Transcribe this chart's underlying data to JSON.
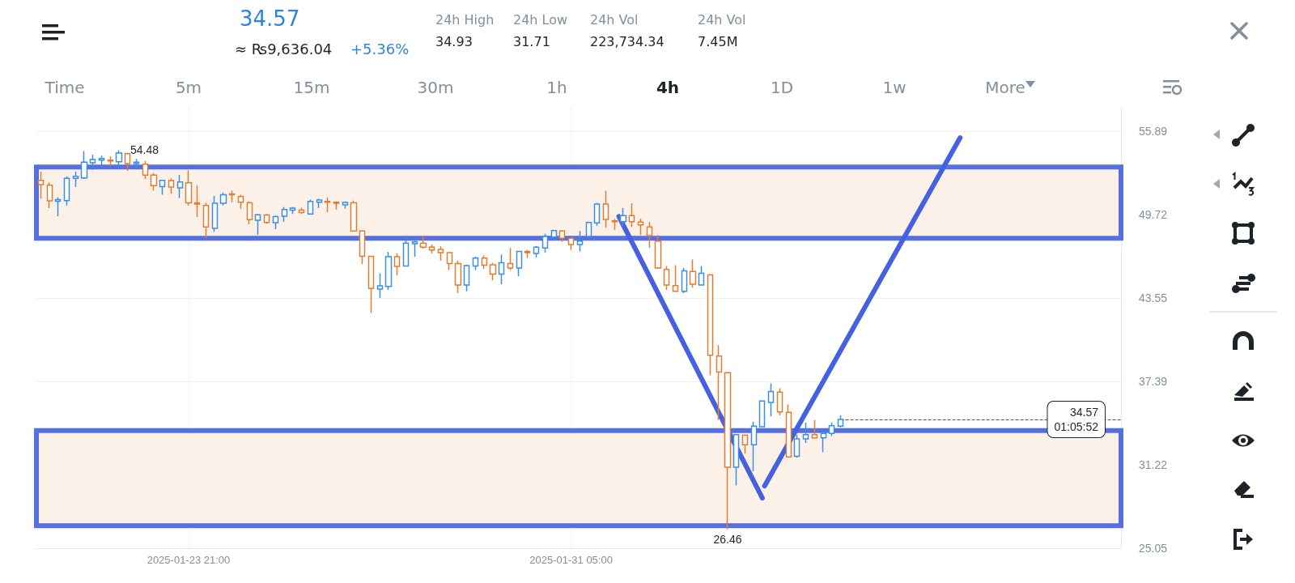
{
  "chart_data": {
    "type": "candlestick",
    "title": "34.57",
    "subtitle": "≈ ₨9,636.04",
    "annotations": [
      "+5.36%",
      "24h High",
      "34.93",
      "24h Low",
      "31.71",
      "24h Vol",
      "223,734.34",
      "24h Vol",
      "7.45M",
      "Time",
      "5m",
      "15m",
      "30m",
      "1h",
      "4h",
      "1D",
      "1w",
      "More",
      {
        "text": "54.48",
        "x": "2025-01-22T13:00",
        "y": 54.48
      },
      {
        "text": "26.46",
        "x": "2025-02-03T05:00",
        "y": 26.46
      }
    ],
    "x": [
      "2025-01-21T01:00",
      "2025-01-21T05:00",
      "2025-01-21T09:00",
      "2025-01-21T13:00",
      "2025-01-21T17:00",
      "2025-01-21T21:00",
      "2025-01-22T01:00",
      "2025-01-22T05:00",
      "2025-01-22T09:00",
      "2025-01-22T13:00",
      "2025-01-22T17:00",
      "2025-01-22T21:00",
      "2025-01-23T01:00",
      "2025-01-23T05:00",
      "2025-01-23T09:00",
      "2025-01-23T13:00",
      "2025-01-23T17:00",
      "2025-01-23T21:00",
      "2025-01-24T01:00",
      "2025-01-24T05:00",
      "2025-01-24T09:00",
      "2025-01-24T13:00",
      "2025-01-24T17:00",
      "2025-01-24T21:00",
      "2025-01-25T01:00",
      "2025-01-25T05:00",
      "2025-01-25T09:00",
      "2025-01-25T13:00",
      "2025-01-25T17:00",
      "2025-01-25T21:00",
      "2025-01-26T01:00",
      "2025-01-26T05:00",
      "2025-01-26T09:00",
      "2025-01-26T13:00",
      "2025-01-26T17:00",
      "2025-01-26T21:00",
      "2025-01-27T01:00",
      "2025-01-27T05:00",
      "2025-01-27T09:00",
      "2025-01-27T13:00",
      "2025-01-27T17:00",
      "2025-01-27T21:00",
      "2025-01-28T01:00",
      "2025-01-28T05:00",
      "2025-01-28T09:00",
      "2025-01-28T13:00",
      "2025-01-28T17:00",
      "2025-01-28T21:00",
      "2025-01-29T01:00",
      "2025-01-29T05:00",
      "2025-01-29T09:00",
      "2025-01-29T13:00",
      "2025-01-29T17:00",
      "2025-01-29T21:00",
      "2025-01-30T01:00",
      "2025-01-30T05:00",
      "2025-01-30T09:00",
      "2025-01-30T13:00",
      "2025-01-30T17:00",
      "2025-01-30T21:00",
      "2025-01-31T01:00",
      "2025-01-31T05:00",
      "2025-01-31T09:00",
      "2025-01-31T13:00",
      "2025-01-31T17:00",
      "2025-01-31T21:00",
      "2025-02-01T01:00",
      "2025-02-01T05:00",
      "2025-02-01T09:00",
      "2025-02-01T13:00",
      "2025-02-01T17:00",
      "2025-02-01T21:00",
      "2025-02-02T01:00",
      "2025-02-02T05:00",
      "2025-02-02T09:00",
      "2025-02-02T13:00",
      "2025-02-02T17:00",
      "2025-02-02T21:00",
      "2025-02-03T01:00",
      "2025-02-03T05:00",
      "2025-02-03T09:00",
      "2025-02-03T13:00",
      "2025-02-03T17:00",
      "2025-02-03T21:00",
      "2025-02-04T01:00",
      "2025-02-04T05:00",
      "2025-02-04T09:00",
      "2025-02-04T13:00",
      "2025-02-04T17:00",
      "2025-02-04T21:00",
      "2025-02-05T01:00",
      "2025-02-05T05:00",
      "2025-02-05T09:00"
    ],
    "ohlc": [
      [
        52.25,
        52.89,
        50.89,
        51.93
      ],
      [
        51.89,
        52.09,
        50.19,
        50.73
      ],
      [
        50.71,
        50.99,
        49.6,
        50.83
      ],
      [
        50.75,
        52.55,
        50.39,
        52.39
      ],
      [
        52.39,
        52.89,
        51.75,
        52.55
      ],
      [
        52.43,
        54.42,
        52.35,
        53.59
      ],
      [
        53.55,
        54.14,
        53.03,
        53.79
      ],
      [
        53.75,
        54.08,
        53.35,
        53.87
      ],
      [
        53.75,
        54.02,
        53.29,
        53.69
      ],
      [
        53.63,
        54.48,
        53.15,
        54.26
      ],
      [
        54.22,
        54.28,
        52.95,
        53.49
      ],
      [
        53.49,
        53.83,
        53.05,
        53.59
      ],
      [
        53.45,
        53.69,
        52.35,
        52.63
      ],
      [
        52.63,
        52.79,
        51.49,
        51.85
      ],
      [
        51.79,
        52.29,
        51.19,
        52.25
      ],
      [
        52.23,
        52.39,
        51.27,
        51.75
      ],
      [
        51.69,
        52.65,
        50.95,
        52.13
      ],
      [
        52.07,
        52.99,
        50.39,
        50.59
      ],
      [
        50.59,
        51.85,
        49.54,
        50.49
      ],
      [
        50.39,
        50.59,
        47.96,
        48.8
      ],
      [
        48.7,
        51.09,
        48.44,
        50.55
      ],
      [
        50.55,
        51.35,
        50.39,
        51.19
      ],
      [
        51.25,
        51.49,
        50.63,
        51.19
      ],
      [
        51.05,
        51.19,
        50.15,
        50.63
      ],
      [
        50.59,
        50.69,
        49.0,
        49.34
      ],
      [
        49.3,
        49.76,
        48.24,
        49.7
      ],
      [
        49.68,
        49.76,
        49.04,
        49.14
      ],
      [
        49.12,
        49.64,
        48.64,
        49.56
      ],
      [
        49.6,
        50.27,
        49.2,
        50.09
      ],
      [
        50.05,
        50.29,
        49.76,
        50.19
      ],
      [
        50.05,
        50.23,
        49.76,
        49.86
      ],
      [
        49.76,
        50.83,
        49.7,
        50.69
      ],
      [
        50.63,
        50.89,
        50.19,
        50.79
      ],
      [
        50.69,
        50.99,
        49.9,
        50.63
      ],
      [
        50.63,
        50.69,
        50.07,
        50.55
      ],
      [
        50.43,
        50.69,
        50.15,
        50.61
      ],
      [
        50.59,
        50.75,
        48.46,
        48.5
      ],
      [
        48.5,
        48.5,
        46.05,
        46.64
      ],
      [
        46.64,
        46.64,
        42.45,
        44.25
      ],
      [
        44.21,
        45.37,
        43.57,
        44.45
      ],
      [
        44.41,
        46.96,
        44.15,
        46.6
      ],
      [
        46.6,
        46.84,
        45.21,
        45.89
      ],
      [
        45.91,
        48.16,
        45.91,
        47.6
      ],
      [
        47.56,
        47.96,
        46.6,
        47.7
      ],
      [
        47.6,
        48.14,
        47.2,
        47.3
      ],
      [
        47.3,
        47.5,
        46.84,
        47.1
      ],
      [
        47.14,
        47.36,
        46.3,
        46.9
      ],
      [
        46.9,
        46.9,
        45.61,
        46.1
      ],
      [
        46.1,
        46.3,
        43.91,
        44.51
      ],
      [
        44.51,
        46.0,
        44.05,
        45.95
      ],
      [
        45.91,
        46.6,
        45.61,
        46.5
      ],
      [
        46.5,
        46.7,
        45.7,
        45.97
      ],
      [
        46.0,
        46.16,
        44.85,
        45.31
      ],
      [
        45.31,
        46.76,
        44.57,
        46.16
      ],
      [
        46.1,
        47.24,
        45.61,
        45.77
      ],
      [
        45.77,
        47.0,
        45.17,
        47.0
      ],
      [
        47.0,
        47.1,
        46.5,
        46.9
      ],
      [
        46.84,
        47.4,
        46.56,
        47.3
      ],
      [
        47.24,
        48.3,
        46.9,
        48.1
      ],
      [
        48.06,
        48.6,
        47.84,
        48.54
      ],
      [
        48.5,
        48.56,
        47.7,
        47.96
      ],
      [
        47.96,
        48.04,
        47.1,
        47.5
      ],
      [
        47.5,
        48.5,
        47.0,
        47.76
      ],
      [
        48.1,
        49.2,
        48.1,
        49.14
      ],
      [
        49.1,
        50.59,
        48.9,
        50.49
      ],
      [
        50.49,
        51.49,
        48.74,
        49.36
      ],
      [
        49.26,
        49.4,
        48.6,
        49.2
      ],
      [
        49.2,
        50.19,
        48.9,
        49.64
      ],
      [
        49.64,
        50.55,
        48.8,
        49.2
      ],
      [
        49.16,
        49.4,
        48.2,
        48.96
      ],
      [
        48.8,
        49.16,
        47.24,
        48.16
      ],
      [
        47.76,
        48.2,
        45.71,
        45.77
      ],
      [
        45.66,
        45.91,
        44.15,
        44.51
      ],
      [
        44.47,
        45.97,
        44.01,
        44.05
      ],
      [
        44.05,
        45.77,
        43.91,
        45.55
      ],
      [
        45.51,
        46.4,
        44.31,
        44.57
      ],
      [
        44.51,
        45.91,
        44.49,
        45.37
      ],
      [
        45.25,
        45.31,
        37.83,
        39.32
      ],
      [
        39.26,
        40.06,
        34.53,
        38.07
      ],
      [
        38.02,
        38.06,
        26.46,
        31.04
      ],
      [
        31.04,
        33.44,
        29.69,
        33.44
      ],
      [
        33.4,
        33.4,
        32.04,
        32.7
      ],
      [
        32.7,
        34.39,
        30.74,
        34.07
      ],
      [
        34.03,
        35.93,
        33.99,
        35.93
      ],
      [
        35.83,
        37.23,
        34.79,
        36.63
      ],
      [
        36.59,
        36.87,
        34.87,
        35.13
      ],
      [
        35.09,
        35.67,
        31.74,
        31.8
      ],
      [
        31.84,
        33.44,
        31.74,
        33.14
      ],
      [
        33.14,
        34.33,
        32.84,
        33.44
      ],
      [
        33.44,
        34.53,
        33.18,
        33.2
      ],
      [
        33.2,
        33.8,
        32.14,
        33.54
      ],
      [
        33.54,
        34.33,
        33.34,
        34.1
      ],
      [
        34.07,
        34.87,
        33.99,
        34.57
      ]
    ],
    "colors": [
      "#e07d2e",
      "#e07d2e",
      "#3a8fe3",
      "#3a8fe3",
      "#3a8fe3",
      "#3a8fe3",
      "#3a8fe3",
      "#3a8fe3",
      "#e07d2e",
      "#3a8fe3",
      "#e07d2e",
      "#3a8fe3",
      "#e07d2e",
      "#e07d2e",
      "#3a8fe3",
      "#e07d2e",
      "#3a8fe3",
      "#e07d2e",
      "#e07d2e",
      "#e07d2e",
      "#3a8fe3",
      "#3a8fe3",
      "#e07d2e",
      "#e07d2e",
      "#e07d2e",
      "#3a8fe3",
      "#e07d2e",
      "#3a8fe3",
      "#3a8fe3",
      "#3a8fe3",
      "#e07d2e",
      "#3a8fe3",
      "#3a8fe3",
      "#e07d2e",
      "#e07d2e",
      "#3a8fe3",
      "#e07d2e",
      "#e07d2e",
      "#e07d2e",
      "#3a8fe3",
      "#3a8fe3",
      "#e07d2e",
      "#3a8fe3",
      "#3a8fe3",
      "#e07d2e",
      "#e07d2e",
      "#e07d2e",
      "#e07d2e",
      "#e07d2e",
      "#3a8fe3",
      "#3a8fe3",
      "#e07d2e",
      "#e07d2e",
      "#3a8fe3",
      "#e07d2e",
      "#3a8fe3",
      "#e07d2e",
      "#3a8fe3",
      "#3a8fe3",
      "#3a8fe3",
      "#e07d2e",
      "#e07d2e",
      "#3a8fe3",
      "#3a8fe3",
      "#3a8fe3",
      "#e07d2e",
      "#e07d2e",
      "#3a8fe3",
      "#e07d2e",
      "#e07d2e",
      "#e07d2e",
      "#e07d2e",
      "#e07d2e",
      "#e07d2e",
      "#3a8fe3",
      "#e07d2e",
      "#3a8fe3",
      "#e07d2e",
      "#e07d2e",
      "#e07d2e",
      "#3a8fe3",
      "#e07d2e",
      "#3a8fe3",
      "#3a8fe3",
      "#3a8fe3",
      "#e07d2e",
      "#e07d2e",
      "#3a8fe3",
      "#3a8fe3",
      "#e07d2e",
      "#3a8fe3",
      "#3a8fe3",
      "#3a8fe3"
    ],
    "series": [
      {
        "type": "line",
        "color": "#4361e0",
        "x": [
          "2025-02-01T03:00",
          "2025-02-03T21:00"
        ],
        "values": [
          49.58,
          28.75
        ]
      },
      {
        "type": "line",
        "color": "#4361e0",
        "x": [
          "2025-02-03T22:00",
          "2025-02-07T16:00"
        ],
        "values": [
          29.65,
          55.4
        ]
      }
    ],
    "bands": [
      {
        "axis": "y",
        "from": 47.97,
        "to": 53.23,
        "color": "#fcefe6"
      },
      {
        "axis": "y",
        "from": 26.71,
        "to": 33.74,
        "color": "#fcefe6"
      }
    ],
    "ref_lines": [
      {
        "axis": "y",
        "value": 34.57,
        "label": "34.57\n01:05:52",
        "line_style": "dashed",
        "color": "#555555"
      }
    ],
    "xlim": [
      "2025-01-20T23:00",
      "2025-02-10T18:00"
    ],
    "xticks": [
      {
        "value": "2025-01-23T21:00",
        "label": "2025-01-23 21:00"
      },
      {
        "value": "2025-01-31T05:00",
        "label": "2025-01-31 05:00"
      }
    ],
    "ylim": [
      25.05,
      57.62
    ],
    "yticks": [
      25.05,
      31.22,
      37.39,
      43.55,
      49.72,
      55.89
    ],
    "grid": true,
    "marker": "none",
    "line_style": "solid"
  }
}
